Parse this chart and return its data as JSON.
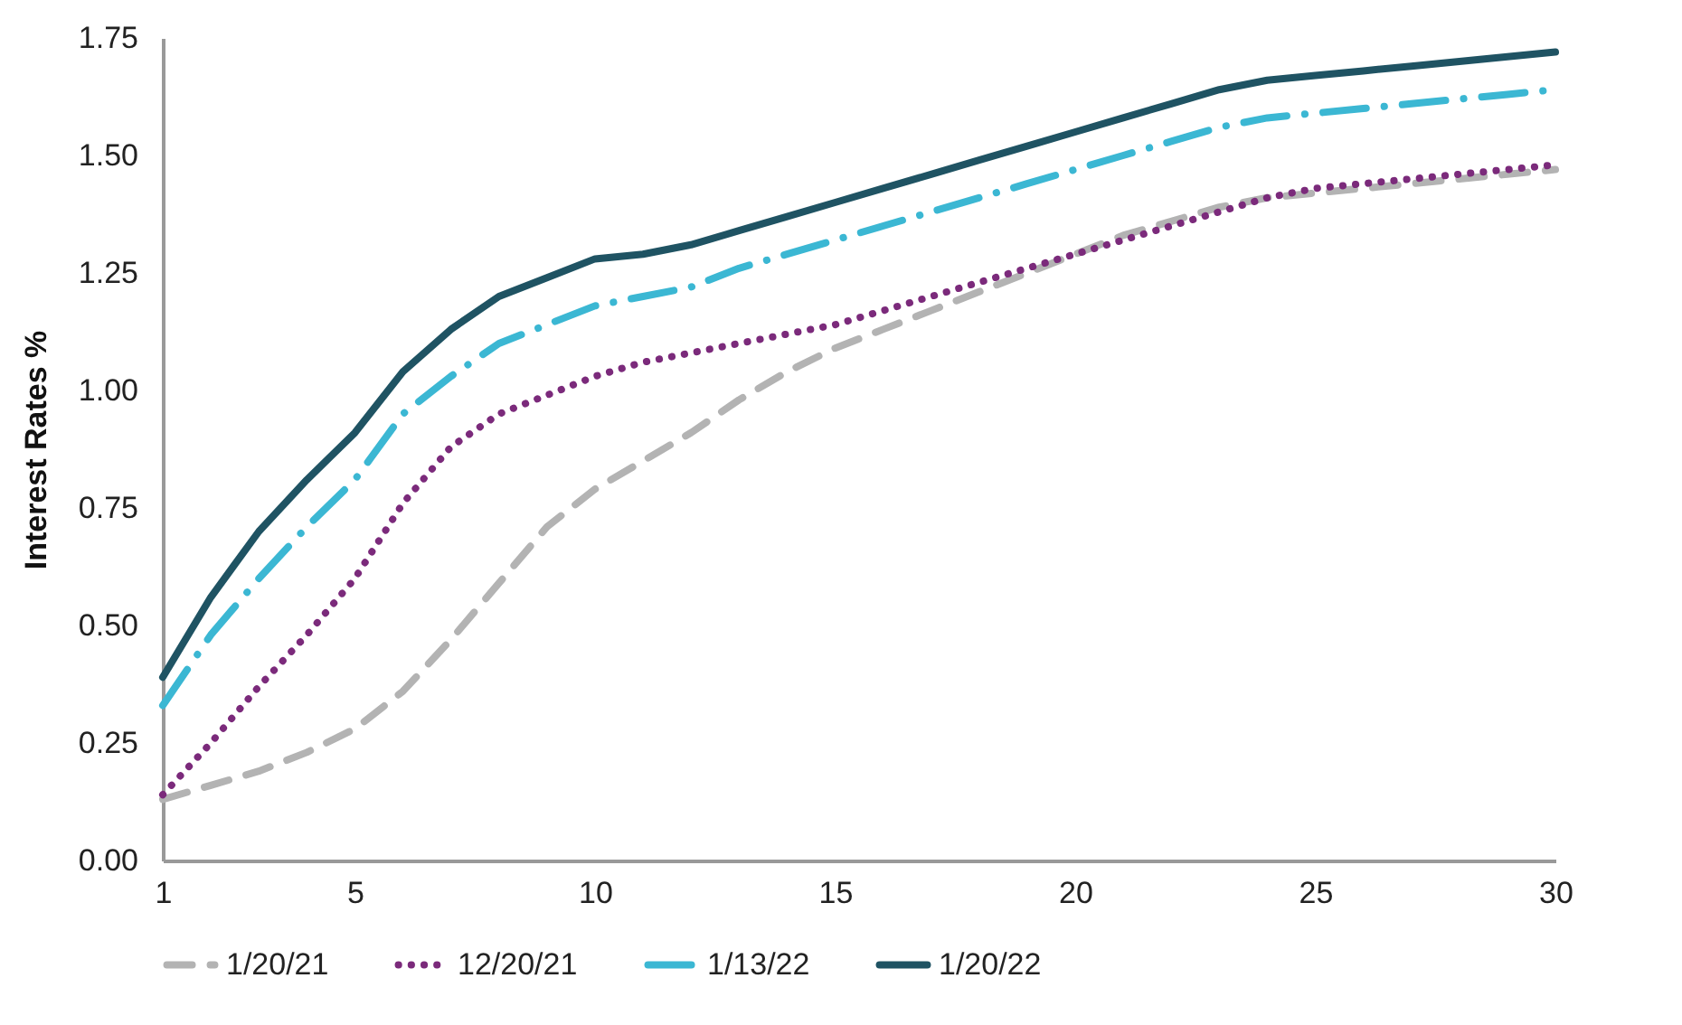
{
  "chart_data": {
    "type": "line",
    "ylabel": "Interest Rates %",
    "x": [
      1,
      2,
      3,
      4,
      5,
      6,
      7,
      8,
      9,
      10,
      11,
      12,
      13,
      14,
      15,
      16,
      17,
      18,
      19,
      20,
      21,
      22,
      23,
      24,
      25,
      26,
      27,
      28,
      29,
      30
    ],
    "series": [
      {
        "name": "1/20/21",
        "color": "#b3b3b3",
        "line_style": "dashed",
        "values": [
          0.13,
          0.16,
          0.19,
          0.23,
          0.28,
          0.36,
          0.47,
          0.59,
          0.71,
          0.79,
          0.85,
          0.91,
          0.98,
          1.04,
          1.09,
          1.13,
          1.17,
          1.21,
          1.25,
          1.29,
          1.33,
          1.36,
          1.39,
          1.41,
          1.42,
          1.43,
          1.44,
          1.45,
          1.46,
          1.47
        ]
      },
      {
        "name": "12/20/21",
        "color": "#7b2a7b",
        "line_style": "dotted",
        "values": [
          0.14,
          0.25,
          0.37,
          0.48,
          0.6,
          0.76,
          0.88,
          0.95,
          0.99,
          1.03,
          1.06,
          1.08,
          1.1,
          1.12,
          1.14,
          1.17,
          1.2,
          1.23,
          1.26,
          1.29,
          1.32,
          1.35,
          1.38,
          1.41,
          1.43,
          1.44,
          1.45,
          1.46,
          1.47,
          1.48
        ]
      },
      {
        "name": "1/13/22",
        "color": "#3bb7d3",
        "line_style": "dashdot",
        "values": [
          0.33,
          0.48,
          0.6,
          0.71,
          0.81,
          0.95,
          1.03,
          1.1,
          1.14,
          1.18,
          1.2,
          1.22,
          1.26,
          1.29,
          1.32,
          1.35,
          1.38,
          1.41,
          1.44,
          1.47,
          1.5,
          1.53,
          1.56,
          1.58,
          1.59,
          1.6,
          1.61,
          1.62,
          1.63,
          1.64
        ]
      },
      {
        "name": "1/20/22",
        "color": "#1f5363",
        "line_style": "solid",
        "values": [
          0.39,
          0.56,
          0.7,
          0.81,
          0.91,
          1.04,
          1.13,
          1.2,
          1.24,
          1.28,
          1.29,
          1.31,
          1.34,
          1.37,
          1.4,
          1.43,
          1.46,
          1.49,
          1.52,
          1.55,
          1.58,
          1.61,
          1.64,
          1.66,
          1.67,
          1.68,
          1.69,
          1.7,
          1.71,
          1.72
        ]
      }
    ],
    "xlim": [
      1,
      30
    ],
    "xticks": [
      1,
      5,
      10,
      15,
      20,
      25,
      30
    ],
    "ylim": [
      0,
      1.75
    ],
    "yticks": [
      {
        "value": 0,
        "label": "0.00"
      },
      {
        "value": 0.25,
        "label": "0.25"
      },
      {
        "value": 0.5,
        "label": "0.50"
      },
      {
        "value": 0.75,
        "label": "0.75"
      },
      {
        "value": 1,
        "label": "1.00"
      },
      {
        "value": 1.25,
        "label": "1.25"
      },
      {
        "value": 1.5,
        "label": "1.50"
      },
      {
        "value": 1.75,
        "label": "1.75"
      }
    ],
    "legend": "bottom",
    "grid": false
  }
}
